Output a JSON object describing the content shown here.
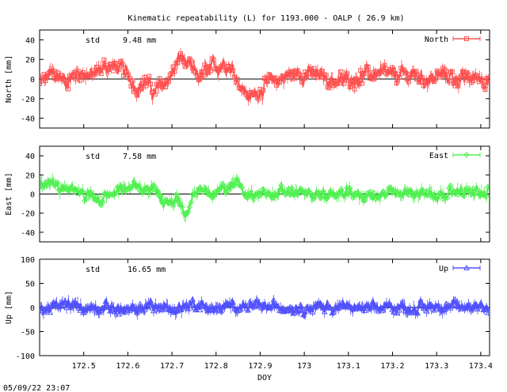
{
  "title": "Kinematic repeatability (L) for 1193.000 - OALP  ( 26.9 km)",
  "footer_timestamp": "05/09/22 23:07",
  "chart_data": [
    {
      "type": "line",
      "name": "North",
      "ylabel": "North [mm]",
      "std_label": "std",
      "std_value": "9.48 mm",
      "legend": "North",
      "legend_position": "top-right",
      "color": "#ff5050",
      "marker": "square",
      "xlim": [
        172.4,
        173.42
      ],
      "ylim": [
        -50,
        50
      ],
      "yticks": [
        -40,
        -20,
        0,
        20,
        40
      ],
      "segments": [
        [
          172.4,
          -5
        ],
        [
          172.43,
          6
        ],
        [
          172.46,
          -2
        ],
        [
          172.49,
          8
        ],
        [
          172.52,
          3
        ],
        [
          172.55,
          14
        ],
        [
          172.58,
          10
        ],
        [
          172.6,
          4
        ],
        [
          172.62,
          -8
        ],
        [
          172.64,
          -2
        ],
        [
          172.66,
          -14
        ],
        [
          172.68,
          -6
        ],
        [
          172.7,
          5
        ],
        [
          172.72,
          24
        ],
        [
          172.74,
          10
        ],
        [
          172.76,
          2
        ],
        [
          172.78,
          6
        ],
        [
          172.8,
          12
        ],
        [
          172.82,
          18
        ],
        [
          172.84,
          8
        ],
        [
          172.86,
          -10
        ],
        [
          172.88,
          -20
        ],
        [
          172.9,
          -10
        ],
        [
          172.93,
          -2
        ],
        [
          172.96,
          3
        ],
        [
          173.0,
          6
        ],
        [
          173.04,
          2
        ],
        [
          173.08,
          -3
        ],
        [
          173.12,
          2
        ],
        [
          173.16,
          6
        ],
        [
          173.2,
          2
        ],
        [
          173.24,
          5
        ],
        [
          173.28,
          0
        ],
        [
          173.32,
          4
        ],
        [
          173.36,
          -1
        ],
        [
          173.4,
          3
        ],
        [
          173.42,
          -2
        ]
      ],
      "noise": 10
    },
    {
      "type": "line",
      "name": "East",
      "ylabel": "East [mm]",
      "std_label": "std",
      "std_value": "7.58 mm",
      "legend": "East",
      "legend_position": "top-right",
      "color": "#50f050",
      "marker": "diamond",
      "xlim": [
        172.4,
        173.42
      ],
      "ylim": [
        -50,
        50
      ],
      "yticks": [
        -40,
        -20,
        0,
        20,
        40
      ],
      "segments": [
        [
          172.4,
          15
        ],
        [
          172.43,
          10
        ],
        [
          172.46,
          4
        ],
        [
          172.5,
          -2
        ],
        [
          172.54,
          -4
        ],
        [
          172.58,
          2
        ],
        [
          172.62,
          8
        ],
        [
          172.66,
          4
        ],
        [
          172.69,
          -15
        ],
        [
          172.71,
          -5
        ],
        [
          172.73,
          -20
        ],
        [
          172.75,
          2
        ],
        [
          172.78,
          0
        ],
        [
          172.82,
          6
        ],
        [
          172.85,
          10
        ],
        [
          172.88,
          -2
        ],
        [
          172.92,
          0
        ],
        [
          172.96,
          2
        ],
        [
          173.0,
          0
        ],
        [
          173.05,
          -1
        ],
        [
          173.1,
          0
        ],
        [
          173.15,
          -2
        ],
        [
          173.2,
          0
        ],
        [
          173.25,
          2
        ],
        [
          173.3,
          -1
        ],
        [
          173.35,
          4
        ],
        [
          173.4,
          0
        ],
        [
          173.42,
          2
        ]
      ],
      "noise": 7
    },
    {
      "type": "line",
      "name": "Up",
      "ylabel": "Up [mm]",
      "std_label": "std",
      "std_value": "16.65 mm",
      "legend": "Up",
      "legend_position": "top-right",
      "color": "#5050ff",
      "marker": "triangle",
      "xlabel": "DOY",
      "xlim": [
        172.4,
        173.42
      ],
      "ylim": [
        -100,
        100
      ],
      "yticks": [
        -100,
        -50,
        0,
        50,
        100
      ],
      "xticks": [
        172.5,
        172.6,
        172.7,
        172.8,
        172.9,
        173,
        173.1,
        173.2,
        173.3,
        173.4
      ],
      "segments": [
        [
          172.4,
          -5
        ],
        [
          172.45,
          5
        ],
        [
          172.5,
          0
        ],
        [
          172.55,
          2
        ],
        [
          172.6,
          -10
        ],
        [
          172.65,
          5
        ],
        [
          172.7,
          -5
        ],
        [
          172.75,
          8
        ],
        [
          172.8,
          -5
        ],
        [
          172.85,
          5
        ],
        [
          172.9,
          0
        ],
        [
          172.95,
          2
        ],
        [
          173.0,
          -2
        ],
        [
          173.05,
          2
        ],
        [
          173.1,
          0
        ],
        [
          173.15,
          -4
        ],
        [
          173.2,
          2
        ],
        [
          173.25,
          -2
        ],
        [
          173.3,
          4
        ],
        [
          173.35,
          0
        ],
        [
          173.4,
          6
        ],
        [
          173.42,
          -4
        ]
      ],
      "noise": 14
    }
  ]
}
